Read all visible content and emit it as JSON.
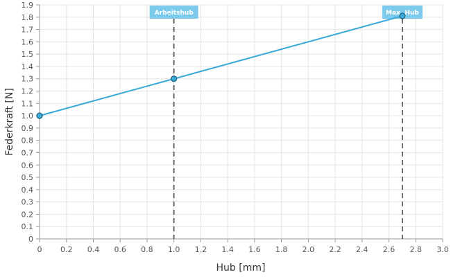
{
  "chart_data": {
    "type": "line",
    "xlabel": "Hub [mm]",
    "ylabel": "Federkraft [N]",
    "xlim": [
      0,
      3.0
    ],
    "ylim": [
      0,
      1.9
    ],
    "x_ticks": [
      "0",
      "0.2",
      "0.4",
      "0.6",
      "0.8",
      "1.0",
      "1.2",
      "1.4",
      "1.6",
      "1.8",
      "2.0",
      "2.2",
      "2.4",
      "2.6",
      "2.8",
      "3.0"
    ],
    "y_ticks": [
      "0",
      "0.1",
      "0.2",
      "0.3",
      "0.4",
      "0.5",
      "0.6",
      "0.7",
      "0.8",
      "0.9",
      "1.0",
      "1.1",
      "1.2",
      "1.3",
      "1.4",
      "1.5",
      "1.6",
      "1.7",
      "1.8",
      "1.9"
    ],
    "grid": true,
    "series": [
      {
        "color": "#3aa9d8",
        "x": [
          0,
          1.0,
          2.7
        ],
        "y": [
          1.0,
          1.3,
          1.81
        ]
      }
    ],
    "annotations": [
      {
        "label": "Arbeitshub",
        "x": 1.0,
        "style": "dashed-vertical",
        "color": "#7ccbec"
      },
      {
        "label": "Max. Hub",
        "x": 2.7,
        "style": "dashed-vertical",
        "color": "#7ccbec"
      }
    ]
  }
}
